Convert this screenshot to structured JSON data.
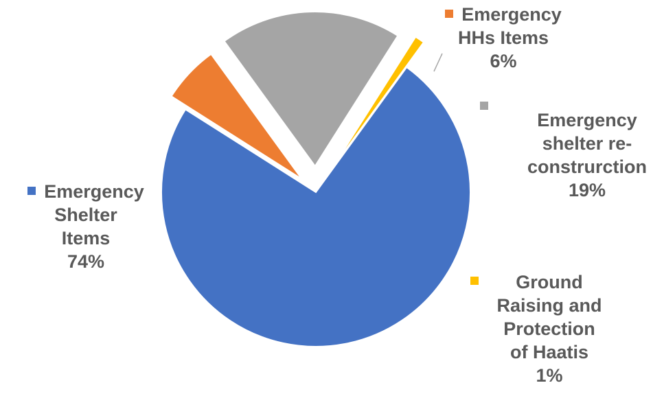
{
  "chart_data": {
    "type": "pie",
    "title": "",
    "slices": [
      {
        "label_lines": [
          "Emergency",
          "Shelter",
          "Items"
        ],
        "percent_label": "74%",
        "value": 74,
        "color": "#4472C4"
      },
      {
        "label_lines": [
          "Emergency",
          "HHs Items"
        ],
        "percent_label": "6%",
        "value": 6,
        "color": "#ED7D31"
      },
      {
        "label_lines": [
          "Emergency",
          "shelter re-",
          "construrction"
        ],
        "percent_label": "19%",
        "value": 19,
        "color": "#A5A5A5"
      },
      {
        "label_lines": [
          "Ground",
          "Raising and",
          "Protection",
          "of Haatis"
        ],
        "percent_label": "1%",
        "value": 1,
        "color": "#FFC000"
      }
    ],
    "legend": "none (data labels with color keys)",
    "exploded": true
  }
}
